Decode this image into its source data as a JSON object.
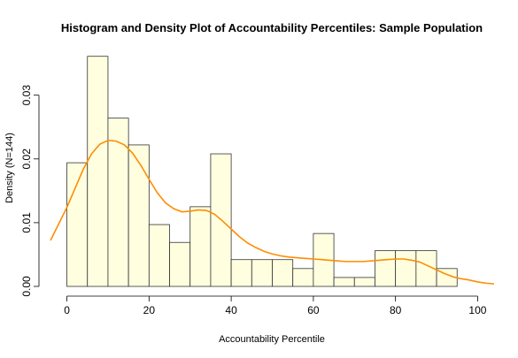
{
  "chart_data": {
    "type": "bar",
    "title": "Histogram and Density Plot of Accountability Percentiles: Sample Population",
    "xlabel": "Accountability Percentile",
    "ylabel": "Density (N=144)",
    "xlim": [
      -4,
      104
    ],
    "ylim": [
      0,
      0.038
    ],
    "x_ticks": [
      0,
      20,
      40,
      60,
      80,
      100
    ],
    "y_ticks": [
      0.0,
      0.01,
      0.02,
      0.03
    ],
    "y_tick_labels": [
      "0.00",
      "0.01",
      "0.02",
      "0.03"
    ],
    "bins": [
      {
        "from": 0,
        "to": 5,
        "value": 0.0194
      },
      {
        "from": 5,
        "to": 10,
        "value": 0.0361
      },
      {
        "from": 10,
        "to": 15,
        "value": 0.0264
      },
      {
        "from": 15,
        "to": 20,
        "value": 0.0222
      },
      {
        "from": 20,
        "to": 25,
        "value": 0.0097
      },
      {
        "from": 25,
        "to": 30,
        "value": 0.0069
      },
      {
        "from": 30,
        "to": 35,
        "value": 0.0125
      },
      {
        "from": 35,
        "to": 40,
        "value": 0.0208
      },
      {
        "from": 40,
        "to": 45,
        "value": 0.0042
      },
      {
        "from": 45,
        "to": 50,
        "value": 0.0042
      },
      {
        "from": 50,
        "to": 55,
        "value": 0.0042
      },
      {
        "from": 55,
        "to": 60,
        "value": 0.0028
      },
      {
        "from": 60,
        "to": 65,
        "value": 0.0083
      },
      {
        "from": 65,
        "to": 70,
        "value": 0.0014
      },
      {
        "from": 70,
        "to": 75,
        "value": 0.0014
      },
      {
        "from": 75,
        "to": 80,
        "value": 0.0056
      },
      {
        "from": 80,
        "to": 85,
        "value": 0.0056
      },
      {
        "from": 85,
        "to": 90,
        "value": 0.0056
      },
      {
        "from": 90,
        "to": 95,
        "value": 0.0028
      }
    ],
    "density": {
      "x": [
        -4,
        -2,
        0,
        2,
        4,
        6,
        8,
        10,
        12,
        14,
        16,
        18,
        20,
        22,
        24,
        26,
        28,
        30,
        32,
        34,
        36,
        38,
        40,
        42,
        44,
        46,
        48,
        50,
        52,
        54,
        56,
        58,
        60,
        62,
        64,
        66,
        68,
        70,
        72,
        74,
        76,
        78,
        80,
        82,
        84,
        86,
        88,
        90,
        92,
        94,
        96,
        98,
        100,
        102,
        104
      ],
      "y": [
        0.0072,
        0.0098,
        0.0124,
        0.0154,
        0.0184,
        0.0208,
        0.0223,
        0.0229,
        0.0228,
        0.0222,
        0.0209,
        0.019,
        0.0168,
        0.0147,
        0.0131,
        0.0122,
        0.0117,
        0.0118,
        0.012,
        0.0119,
        0.0113,
        0.0102,
        0.009,
        0.0078,
        0.0068,
        0.0061,
        0.0055,
        0.0051,
        0.0048,
        0.0046,
        0.0045,
        0.0044,
        0.0043,
        0.0042,
        0.0041,
        0.004,
        0.0039,
        0.0039,
        0.0039,
        0.004,
        0.0041,
        0.0042,
        0.0043,
        0.0043,
        0.0041,
        0.0038,
        0.0032,
        0.0026,
        0.002,
        0.0015,
        0.0012,
        0.001,
        0.0007,
        0.0005,
        0.0004
      ]
    },
    "colors": {
      "bar_fill": "#ffffe0",
      "bar_stroke": "#333333",
      "density_line": "#ff8c00"
    },
    "grid": false
  }
}
